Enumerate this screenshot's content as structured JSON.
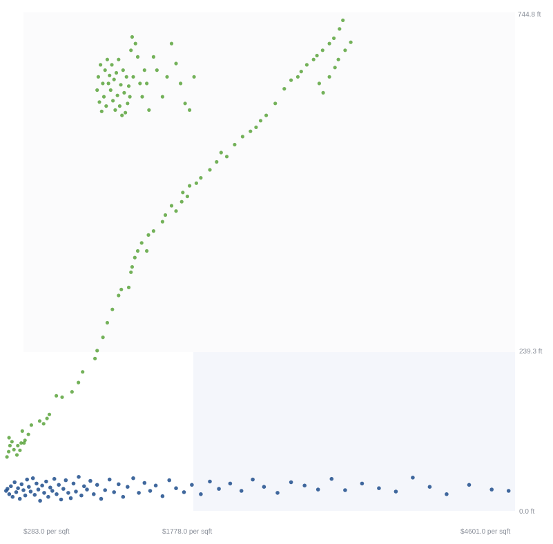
{
  "chart_data": {
    "type": "scatter",
    "x_ticks": [
      "$283.0 per sqft",
      "$1778.0 per sqft",
      "$4601.0 per sqft"
    ],
    "y_ticks": [
      "744.8 ft",
      "239.3 ft",
      "0.0 ft"
    ],
    "xlim": [
      283.0,
      4601.0
    ],
    "ylim": [
      0.0,
      744.8
    ],
    "grid": false,
    "legend": "none",
    "colors": {
      "series_a": "#5aa33c",
      "series_b": "#1f4e8c",
      "panel_upper": "#fbfbfc",
      "panel_lower_right": "#f4f6fb"
    },
    "series": [
      {
        "color": "series_a",
        "points": [
          [
            100,
            78
          ],
          [
            115,
            86
          ],
          [
            118,
            107
          ],
          [
            126,
            95
          ],
          [
            144,
            101
          ],
          [
            162,
            89
          ],
          [
            188,
            81
          ],
          [
            196,
            95
          ],
          [
            215,
            88
          ],
          [
            226,
            99
          ],
          [
            236,
            117
          ],
          [
            251,
            99
          ],
          [
            260,
            103
          ],
          [
            290,
            112
          ],
          [
            316,
            126
          ],
          [
            390,
            132
          ],
          [
            425,
            128
          ],
          [
            455,
            136
          ],
          [
            476,
            142
          ],
          [
            538,
            170
          ],
          [
            589,
            168
          ],
          [
            677,
            176
          ],
          [
            734,
            190
          ],
          [
            771,
            206
          ],
          [
            881,
            226
          ],
          [
            900,
            238
          ],
          [
            951,
            258
          ],
          [
            990,
            280
          ],
          [
            1035,
            300
          ],
          [
            1090,
            321
          ],
          [
            1114,
            330
          ],
          [
            1180,
            333
          ],
          [
            1200,
            356
          ],
          [
            1210,
            364
          ],
          [
            1234,
            378
          ],
          [
            1260,
            388
          ],
          [
            1295,
            400
          ],
          [
            1340,
            388
          ],
          [
            1355,
            412
          ],
          [
            1400,
            418
          ],
          [
            1480,
            432
          ],
          [
            1505,
            442
          ],
          [
            1560,
            456
          ],
          [
            1600,
            448
          ],
          [
            1650,
            462
          ],
          [
            1660,
            476
          ],
          [
            1700,
            470
          ],
          [
            1720,
            486
          ],
          [
            1780,
            490
          ],
          [
            1820,
            498
          ],
          [
            1900,
            510
          ],
          [
            1960,
            522
          ],
          [
            2000,
            536
          ],
          [
            2050,
            530
          ],
          [
            2120,
            548
          ],
          [
            2190,
            560
          ],
          [
            2260,
            568
          ],
          [
            2310,
            574
          ],
          [
            2350,
            584
          ],
          [
            2400,
            592
          ],
          [
            2480,
            610
          ],
          [
            2560,
            632
          ],
          [
            2620,
            645
          ],
          [
            2680,
            650
          ],
          [
            2710,
            658
          ],
          [
            2760,
            668
          ],
          [
            2820,
            676
          ],
          [
            2850,
            682
          ],
          [
            2900,
            690
          ],
          [
            2960,
            700
          ],
          [
            3000,
            708
          ],
          [
            3050,
            722
          ],
          [
            3080,
            735
          ],
          [
            2870,
            640
          ],
          [
            2905,
            626
          ],
          [
            2960,
            650
          ],
          [
            3010,
            664
          ],
          [
            3040,
            676
          ],
          [
            3100,
            690
          ],
          [
            3150,
            702
          ],
          [
            1000,
            640
          ],
          [
            1010,
            652
          ],
          [
            1020,
            630
          ],
          [
            1030,
            668
          ],
          [
            1040,
            614
          ],
          [
            1050,
            646
          ],
          [
            1060,
            600
          ],
          [
            1070,
            656
          ],
          [
            1080,
            622
          ],
          [
            1090,
            676
          ],
          [
            1100,
            606
          ],
          [
            1110,
            638
          ],
          [
            1120,
            592
          ],
          [
            1130,
            660
          ],
          [
            1140,
            626
          ],
          [
            1150,
            596
          ],
          [
            1160,
            650
          ],
          [
            1170,
            610
          ],
          [
            1180,
            636
          ],
          [
            1190,
            620
          ],
          [
            900,
            630
          ],
          [
            910,
            650
          ],
          [
            920,
            612
          ],
          [
            930,
            668
          ],
          [
            940,
            598
          ],
          [
            950,
            640
          ],
          [
            960,
            620
          ],
          [
            970,
            660
          ],
          [
            980,
            606
          ],
          [
            990,
            676
          ],
          [
            1200,
            690
          ],
          [
            1210,
            710
          ],
          [
            1220,
            650
          ],
          [
            1240,
            700
          ],
          [
            1260,
            680
          ],
          [
            1280,
            640
          ],
          [
            1300,
            620
          ],
          [
            1320,
            660
          ],
          [
            1340,
            640
          ],
          [
            1360,
            600
          ],
          [
            1400,
            680
          ],
          [
            1430,
            660
          ],
          [
            1480,
            620
          ],
          [
            1520,
            650
          ],
          [
            1560,
            700
          ],
          [
            1600,
            670
          ],
          [
            1640,
            640
          ],
          [
            1680,
            610
          ],
          [
            1720,
            600
          ],
          [
            1760,
            650
          ]
        ]
      },
      {
        "color": "series_b",
        "points": [
          [
            92,
            27
          ],
          [
            104,
            30
          ],
          [
            120,
            22
          ],
          [
            135,
            34
          ],
          [
            150,
            18
          ],
          [
            168,
            40
          ],
          [
            182,
            25
          ],
          [
            198,
            31
          ],
          [
            214,
            15
          ],
          [
            230,
            37
          ],
          [
            246,
            28
          ],
          [
            262,
            20
          ],
          [
            278,
            44
          ],
          [
            294,
            33
          ],
          [
            310,
            26
          ],
          [
            330,
            46
          ],
          [
            346,
            21
          ],
          [
            362,
            38
          ],
          [
            378,
            29
          ],
          [
            394,
            12
          ],
          [
            412,
            35
          ],
          [
            430,
            24
          ],
          [
            448,
            41
          ],
          [
            466,
            18
          ],
          [
            484,
            32
          ],
          [
            502,
            27
          ],
          [
            520,
            45
          ],
          [
            540,
            22
          ],
          [
            560,
            36
          ],
          [
            580,
            14
          ],
          [
            600,
            30
          ],
          [
            622,
            43
          ],
          [
            644,
            24
          ],
          [
            666,
            16
          ],
          [
            690,
            38
          ],
          [
            712,
            26
          ],
          [
            736,
            48
          ],
          [
            760,
            20
          ],
          [
            784,
            34
          ],
          [
            810,
            29
          ],
          [
            840,
            42
          ],
          [
            870,
            22
          ],
          [
            900,
            36
          ],
          [
            935,
            15
          ],
          [
            970,
            28
          ],
          [
            1010,
            44
          ],
          [
            1050,
            25
          ],
          [
            1090,
            37
          ],
          [
            1130,
            18
          ],
          [
            1170,
            33
          ],
          [
            1220,
            46
          ],
          [
            1270,
            24
          ],
          [
            1320,
            39
          ],
          [
            1370,
            27
          ],
          [
            1420,
            35
          ],
          [
            1480,
            19
          ],
          [
            1540,
            43
          ],
          [
            1600,
            31
          ],
          [
            1670,
            25
          ],
          [
            1740,
            36
          ],
          [
            1820,
            22
          ],
          [
            1900,
            41
          ],
          [
            1980,
            30
          ],
          [
            2080,
            38
          ],
          [
            2180,
            27
          ],
          [
            2280,
            44
          ],
          [
            2380,
            33
          ],
          [
            2500,
            24
          ],
          [
            2620,
            40
          ],
          [
            2740,
            35
          ],
          [
            2860,
            29
          ],
          [
            2980,
            45
          ],
          [
            3100,
            28
          ],
          [
            3250,
            38
          ],
          [
            3400,
            31
          ],
          [
            3550,
            26
          ],
          [
            3700,
            47
          ],
          [
            3850,
            33
          ],
          [
            4000,
            22
          ],
          [
            4200,
            36
          ],
          [
            4400,
            29
          ],
          [
            4550,
            27
          ]
        ]
      }
    ]
  }
}
